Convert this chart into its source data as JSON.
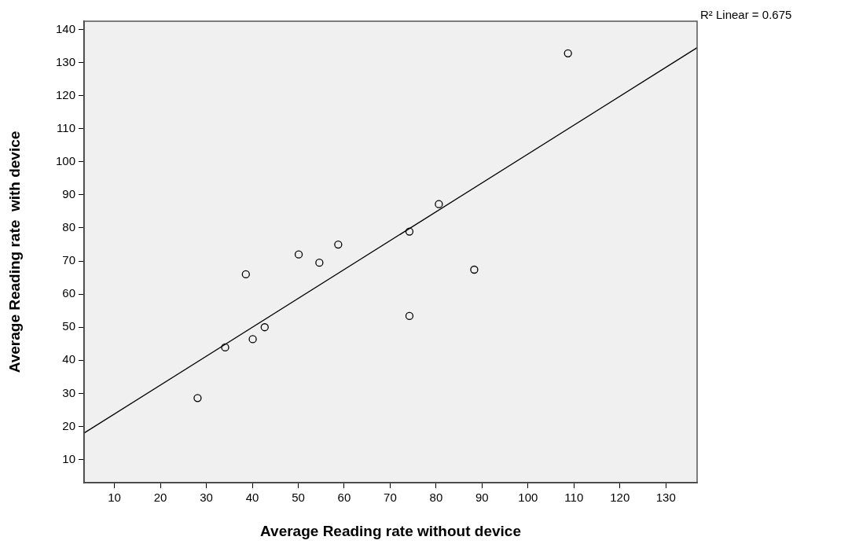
{
  "chart_data": {
    "type": "scatter",
    "xlabel": "Average Reading rate without device",
    "ylabel": "Average Reading rate  with device",
    "annotations": [
      "R² Linear = 0.675"
    ],
    "series": [
      {
        "type": "scatter",
        "color": "#000000",
        "marker": "circle",
        "x": [
          28.1,
          34.1,
          40.1,
          42.7,
          38.6,
          50.1,
          54.6,
          58.7,
          74.2,
          80.6,
          88.3,
          74.2,
          108.7
        ],
        "values": [
          28.6,
          43.9,
          46.4,
          50.0,
          66.0,
          72.0,
          69.5,
          75.0,
          78.9,
          87.2,
          67.4,
          53.4,
          132.8
        ]
      },
      {
        "type": "line",
        "color": "#000000",
        "marker": "none",
        "x": [
          3.4,
          136.8
        ],
        "values": [
          18.0,
          134.5
        ]
      }
    ],
    "xlim": [
      3.4,
      136.8
    ],
    "ylim": [
      3,
      142.5
    ],
    "xticks": [
      10,
      20,
      30,
      40,
      50,
      60,
      70,
      80,
      90,
      100,
      110,
      120,
      130
    ],
    "yticks": [
      10,
      20,
      30,
      40,
      50,
      60,
      70,
      80,
      90,
      100,
      110,
      120,
      130,
      140
    ],
    "grid": false,
    "legend": false
  }
}
